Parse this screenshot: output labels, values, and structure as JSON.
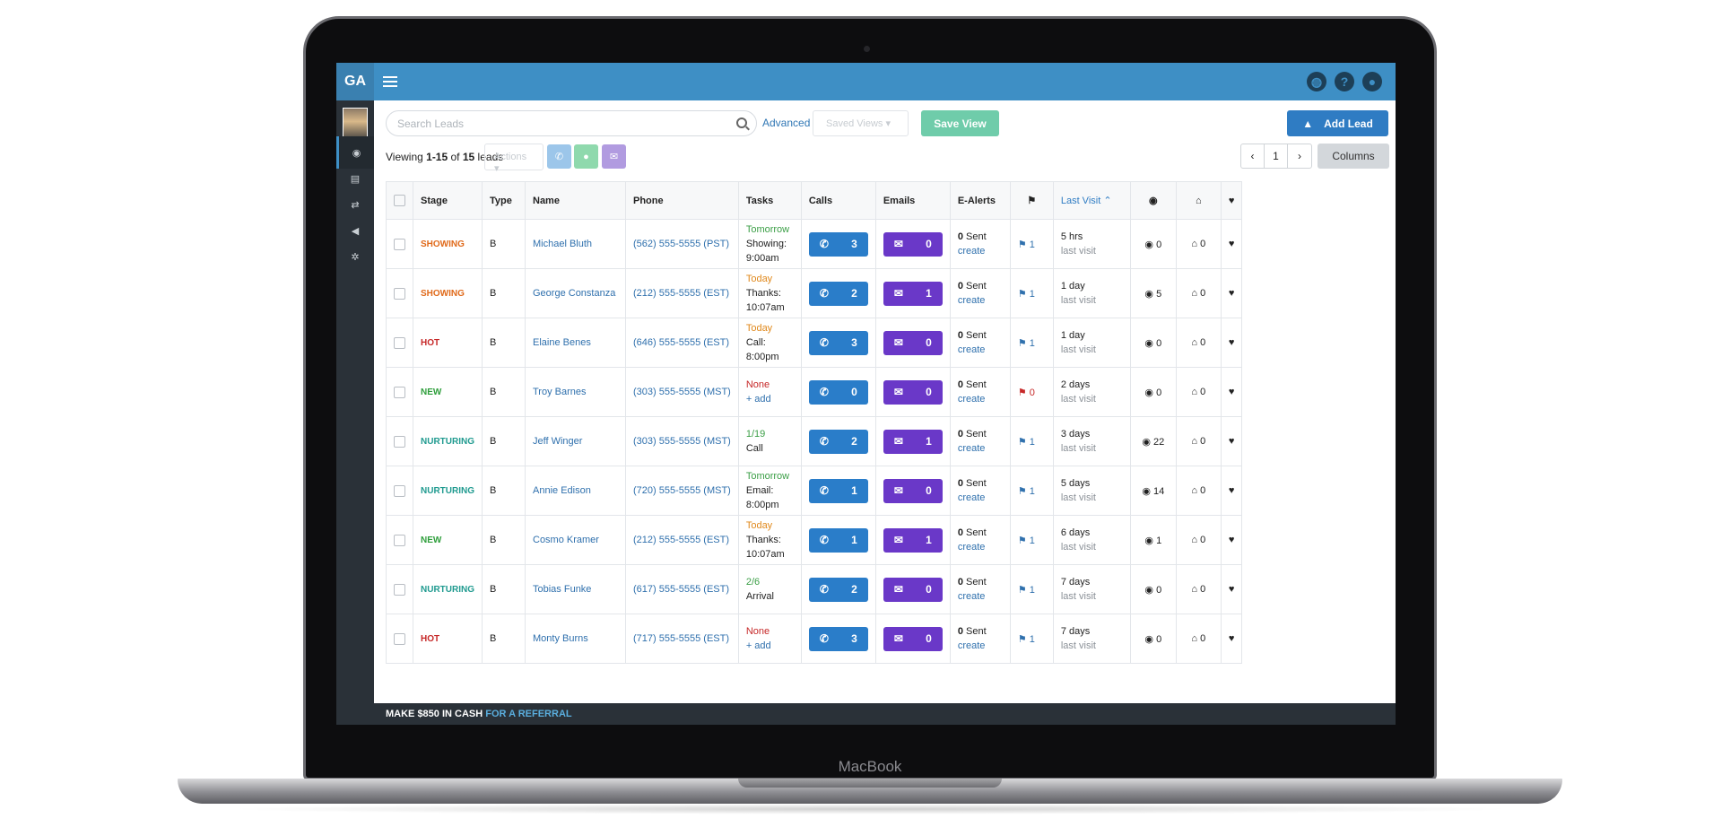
{
  "device": {
    "brand": "MacBook"
  },
  "app": {
    "logo": "GA"
  },
  "topbar": {
    "icons": [
      "globe-icon",
      "help-icon",
      "user-icon"
    ],
    "help_label": "?"
  },
  "sidebar": {
    "items": [
      "dashboard-icon",
      "document-icon",
      "transfer-icon",
      "megaphone-icon",
      "gear-icon"
    ]
  },
  "toolbar": {
    "search_placeholder": "Search Leads",
    "advanced": "Advanced",
    "saved_views": "Saved Views",
    "save_view": "Save View",
    "add_lead": "Add Lead",
    "actions": "Actions",
    "columns": "Columns",
    "page": "1"
  },
  "summary": {
    "prefix": "Viewing ",
    "range": "1-15",
    "of": " of ",
    "total": "15",
    "suffix": " leads"
  },
  "colors": {
    "showing": "#e06a1b",
    "hot": "#c62828",
    "new": "#2e9e3b",
    "nurturing": "#1f9a8f",
    "tomorrow": "#3a9e45",
    "today": "#e0881b",
    "none": "#c62828"
  },
  "columns": [
    "Stage",
    "Type",
    "Name",
    "Phone",
    "Tasks",
    "Calls",
    "Emails",
    "E-Alerts",
    "",
    "Last Visit",
    "",
    "",
    ""
  ],
  "rows": [
    {
      "stage": "SHOWING",
      "stage_color": "#e06a1b",
      "type": "B",
      "name": "Michael Bluth",
      "phone": "(562) 555-5555 (PST)",
      "task_when": "Tomorrow",
      "task_color": "#3a9e45",
      "task_l2": "Showing:",
      "task_l3": "9:00am",
      "calls": "3",
      "emails": "0",
      "alerts_sent": "0",
      "alerts_label": " Sent",
      "alerts_link": "create",
      "flag": "1",
      "flag_color": "#2f70ad",
      "visit": "5 hrs",
      "visit_sub": "last visit",
      "views": "0",
      "homes": "0"
    },
    {
      "stage": "SHOWING",
      "stage_color": "#e06a1b",
      "type": "B",
      "name": "George Constanza",
      "phone": "(212) 555-5555 (EST)",
      "task_when": "Today",
      "task_color": "#e0881b",
      "task_l2": "Thanks:",
      "task_l3": "10:07am",
      "calls": "2",
      "emails": "1",
      "alerts_sent": "0",
      "alerts_label": " Sent",
      "alerts_link": "create",
      "flag": "1",
      "flag_color": "#2f70ad",
      "visit": "1 day",
      "visit_sub": "last visit",
      "views": "5",
      "homes": "0"
    },
    {
      "stage": "HOT",
      "stage_color": "#c62828",
      "type": "B",
      "name": "Elaine Benes",
      "phone": "(646) 555-5555 (EST)",
      "task_when": "Today",
      "task_color": "#e0881b",
      "task_l2": "Call:",
      "task_l3": "8:00pm",
      "calls": "3",
      "emails": "0",
      "alerts_sent": "0",
      "alerts_label": " Sent",
      "alerts_link": "create",
      "flag": "1",
      "flag_color": "#2f70ad",
      "visit": "1 day",
      "visit_sub": "last visit",
      "views": "0",
      "homes": "0"
    },
    {
      "stage": "NEW",
      "stage_color": "#2e9e3b",
      "type": "B",
      "name": "Troy Barnes",
      "phone": "(303) 555-5555 (MST)",
      "task_when": "None",
      "task_color": "#c62828",
      "task_l2": "+ add",
      "task_l3": "",
      "calls": "0",
      "emails": "0",
      "alerts_sent": "0",
      "alerts_label": " Sent",
      "alerts_link": "create",
      "flag": "0",
      "flag_color": "#c62828",
      "visit": "2 days",
      "visit_sub": "last visit",
      "views": "0",
      "homes": "0"
    },
    {
      "stage": "NURTURING",
      "stage_color": "#1f9a8f",
      "type": "B",
      "name": "Jeff Winger",
      "phone": "(303) 555-5555 (MST)",
      "task_when": "1/19",
      "task_color": "#3a9e45",
      "task_l2": "Call",
      "task_l3": "",
      "calls": "2",
      "emails": "1",
      "alerts_sent": "0",
      "alerts_label": " Sent",
      "alerts_link": "create",
      "flag": "1",
      "flag_color": "#2f70ad",
      "visit": "3 days",
      "visit_sub": "last visit",
      "views": "22",
      "homes": "0"
    },
    {
      "stage": "NURTURING",
      "stage_color": "#1f9a8f",
      "type": "B",
      "name": "Annie Edison",
      "phone": "(720) 555-5555 (MST)",
      "task_when": "Tomorrow",
      "task_color": "#3a9e45",
      "task_l2": "Email:",
      "task_l3": "8:00pm",
      "calls": "1",
      "emails": "0",
      "alerts_sent": "0",
      "alerts_label": " Sent",
      "alerts_link": "create",
      "flag": "1",
      "flag_color": "#2f70ad",
      "visit": "5 days",
      "visit_sub": "last visit",
      "views": "14",
      "homes": "0"
    },
    {
      "stage": "NEW",
      "stage_color": "#2e9e3b",
      "type": "B",
      "name": "Cosmo Kramer",
      "phone": "(212) 555-5555 (EST)",
      "task_when": "Today",
      "task_color": "#e0881b",
      "task_l2": "Thanks:",
      "task_l3": "10:07am",
      "calls": "1",
      "emails": "1",
      "alerts_sent": "0",
      "alerts_label": " Sent",
      "alerts_link": "create",
      "flag": "1",
      "flag_color": "#2f70ad",
      "visit": "6 days",
      "visit_sub": "last visit",
      "views": "1",
      "homes": "0"
    },
    {
      "stage": "NURTURING",
      "stage_color": "#1f9a8f",
      "type": "B",
      "name": "Tobias Funke",
      "phone": "(617) 555-5555 (EST)",
      "task_when": "2/6",
      "task_color": "#3a9e45",
      "task_l2": "Arrival",
      "task_l3": "",
      "calls": "2",
      "emails": "0",
      "alerts_sent": "0",
      "alerts_label": " Sent",
      "alerts_link": "create",
      "flag": "1",
      "flag_color": "#2f70ad",
      "visit": "7 days",
      "visit_sub": "last visit",
      "views": "0",
      "homes": "0"
    },
    {
      "stage": "HOT",
      "stage_color": "#c62828",
      "type": "B",
      "name": "Monty Burns",
      "phone": "(717) 555-5555 (EST)",
      "task_when": "None",
      "task_color": "#c62828",
      "task_l2": "+ add",
      "task_l3": "",
      "calls": "3",
      "emails": "0",
      "alerts_sent": "0",
      "alerts_label": " Sent",
      "alerts_link": "create",
      "flag": "1",
      "flag_color": "#2f70ad",
      "visit": "7 days",
      "visit_sub": "last visit",
      "views": "0",
      "homes": "0"
    }
  ],
  "footer": {
    "text": "MAKE $850 IN CASH ",
    "link": "FOR A REFERRAL"
  }
}
